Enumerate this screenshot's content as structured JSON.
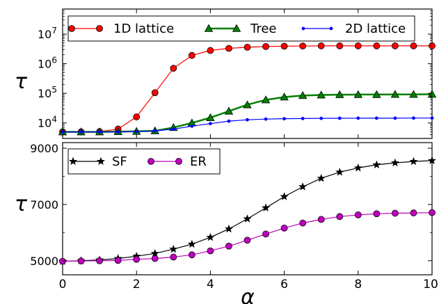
{
  "chart_data": [
    {
      "type": "line",
      "title": "",
      "xlabel": "",
      "ylabel": "τ",
      "yscale": "log",
      "xlim": [
        0,
        10
      ],
      "ylim": [
        3000,
        70000000
      ],
      "grid": false,
      "legend_position": "top",
      "xtick_labels_shown": false,
      "yticks": [
        {
          "value": 10000,
          "base": "10",
          "exp": "4"
        },
        {
          "value": 100000,
          "base": "10",
          "exp": "5"
        },
        {
          "value": 1000000,
          "base": "10",
          "exp": "6"
        },
        {
          "value": 10000000,
          "base": "10",
          "exp": "7"
        }
      ],
      "x": [
        0,
        0.5,
        1,
        1.5,
        2,
        2.5,
        3,
        3.5,
        4,
        4.5,
        5,
        5.5,
        6,
        6.5,
        7,
        7.5,
        8,
        8.5,
        9,
        9.5,
        10
      ],
      "series": [
        {
          "name": "1D lattice",
          "color": "#ff0000",
          "marker": "circle",
          "values": [
            5000,
            5000,
            5100,
            6200,
            16000,
            105000,
            700000,
            1900000,
            2800000,
            3300000,
            3600000,
            3800000,
            3900000,
            3950000,
            4000000,
            4000000,
            4000000,
            4000000,
            4000000,
            4000000,
            4000000
          ]
        },
        {
          "name": "Tree",
          "color": "#008000",
          "marker": "triangle",
          "values": [
            5000,
            5000,
            5000,
            5100,
            5200,
            5400,
            7000,
            10000,
            15000,
            25000,
            41000,
            60000,
            75000,
            84000,
            88000,
            90000,
            91000,
            91000,
            92000,
            92000,
            93000
          ]
        },
        {
          "name": "2D lattice",
          "color": "#0000ff",
          "marker": "dot",
          "values": [
            5000,
            5000,
            5000,
            5000,
            5100,
            5400,
            6200,
            7800,
            9500,
            11500,
            12800,
            13500,
            13900,
            14100,
            14300,
            14400,
            14500,
            14500,
            14500,
            14600,
            14600
          ]
        }
      ]
    },
    {
      "type": "line",
      "title": "",
      "xlabel": "α",
      "ylabel": "τ",
      "xlim": [
        0,
        10
      ],
      "ylim": [
        4500,
        9200
      ],
      "grid": false,
      "legend_position": "top-left",
      "xticks": [
        0,
        2,
        4,
        6,
        8,
        10
      ],
      "xtick_labels": [
        "0",
        "2",
        "4",
        "6",
        "8",
        "10"
      ],
      "yticks": [
        5000,
        7000,
        9000
      ],
      "ytick_labels": [
        "5000",
        "7000",
        "9000"
      ],
      "x": [
        0,
        0.5,
        1,
        1.5,
        2,
        2.5,
        3,
        3.5,
        4,
        4.5,
        5,
        5.5,
        6,
        6.5,
        7,
        7.5,
        8,
        8.5,
        9,
        9.5,
        10
      ],
      "series": [
        {
          "name": "SF",
          "color": "#000000",
          "marker": "star",
          "values": [
            4980,
            5000,
            5030,
            5080,
            5160,
            5260,
            5410,
            5590,
            5830,
            6130,
            6490,
            6880,
            7280,
            7630,
            7930,
            8150,
            8300,
            8410,
            8480,
            8530,
            8560
          ]
        },
        {
          "name": "ER",
          "color": "#bf00bf",
          "marker": "circle",
          "values": [
            4980,
            4990,
            5000,
            5010,
            5050,
            5080,
            5130,
            5210,
            5350,
            5520,
            5730,
            5950,
            6160,
            6340,
            6470,
            6570,
            6630,
            6670,
            6690,
            6700,
            6710
          ]
        }
      ]
    }
  ]
}
